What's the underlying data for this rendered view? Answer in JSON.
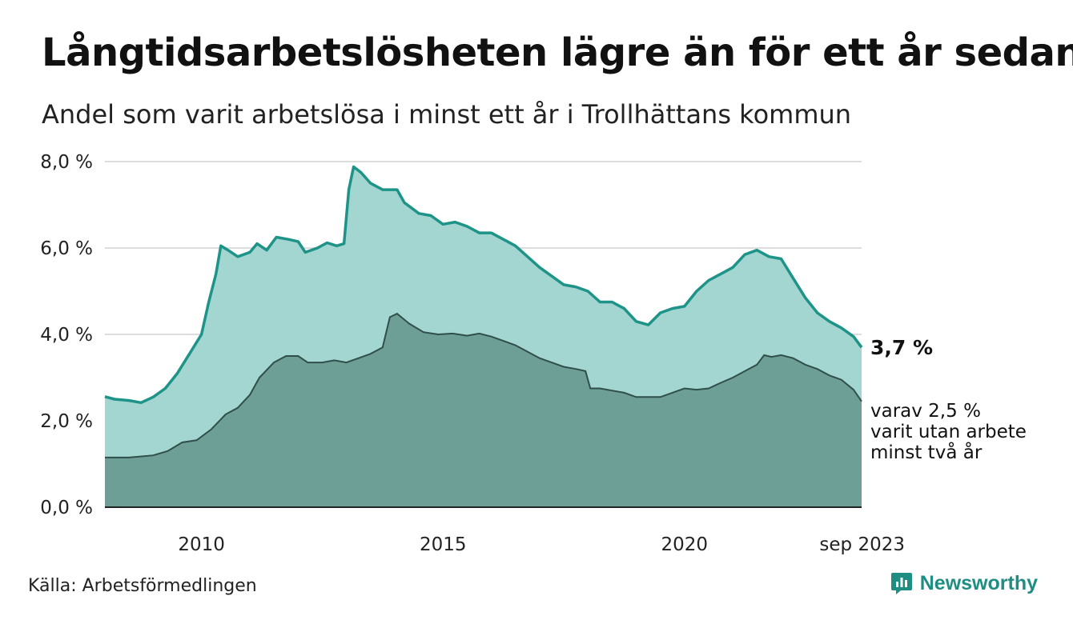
{
  "title": "Långtidsarbetslösheten lägre än för ett år sedan",
  "subtitle": "Andel som varit arbetslösa i minst ett år i Trollhättans kommun",
  "source": "Källa: Arbetsförmedlingen",
  "brand": "Newsworthy",
  "colors": {
    "primary_fill": "#a3d6d0",
    "primary_line": "#1e9388",
    "secondary_fill": "#6e9f97",
    "secondary_line": "#2f4f4a",
    "grid": "#dddddd",
    "brand": "#1e8d82"
  },
  "chart_data": {
    "type": "area",
    "unit": "%",
    "x_start": 2008.0,
    "x_end": 2023.667,
    "ylim": [
      0,
      8
    ],
    "y_ticks": [
      0,
      2,
      4,
      6,
      8
    ],
    "y_tick_labels": [
      "0,0 %",
      "2,0 %",
      "4,0 %",
      "6,0 %",
      "8,0 %"
    ],
    "x_ticks": [
      2010,
      2015,
      2020,
      2023.667
    ],
    "x_tick_labels": [
      "2010",
      "2015",
      "2020",
      "sep 2023"
    ],
    "series": [
      {
        "name": "Arbetslösa minst ett år",
        "points": [
          [
            2008.0,
            2.56
          ],
          [
            2008.2,
            2.5
          ],
          [
            2008.5,
            2.47
          ],
          [
            2008.75,
            2.42
          ],
          [
            2009.0,
            2.55
          ],
          [
            2009.25,
            2.75
          ],
          [
            2009.5,
            3.1
          ],
          [
            2009.75,
            3.55
          ],
          [
            2010.0,
            4.0
          ],
          [
            2010.15,
            4.75
          ],
          [
            2010.3,
            5.4
          ],
          [
            2010.4,
            6.05
          ],
          [
            2010.55,
            5.95
          ],
          [
            2010.75,
            5.8
          ],
          [
            2011.0,
            5.9
          ],
          [
            2011.15,
            6.1
          ],
          [
            2011.35,
            5.95
          ],
          [
            2011.55,
            6.25
          ],
          [
            2011.8,
            6.2
          ],
          [
            2012.0,
            6.15
          ],
          [
            2012.15,
            5.9
          ],
          [
            2012.4,
            6.0
          ],
          [
            2012.6,
            6.12
          ],
          [
            2012.8,
            6.05
          ],
          [
            2012.95,
            6.1
          ],
          [
            2013.05,
            7.35
          ],
          [
            2013.15,
            7.88
          ],
          [
            2013.3,
            7.75
          ],
          [
            2013.5,
            7.5
          ],
          [
            2013.75,
            7.35
          ],
          [
            2014.05,
            7.35
          ],
          [
            2014.2,
            7.05
          ],
          [
            2014.5,
            6.8
          ],
          [
            2014.75,
            6.75
          ],
          [
            2015.0,
            6.55
          ],
          [
            2015.25,
            6.6
          ],
          [
            2015.5,
            6.5
          ],
          [
            2015.75,
            6.35
          ],
          [
            2016.0,
            6.35
          ],
          [
            2016.25,
            6.2
          ],
          [
            2016.5,
            6.05
          ],
          [
            2016.75,
            5.8
          ],
          [
            2017.0,
            5.55
          ],
          [
            2017.25,
            5.35
          ],
          [
            2017.5,
            5.15
          ],
          [
            2017.75,
            5.1
          ],
          [
            2018.0,
            5.0
          ],
          [
            2018.25,
            4.75
          ],
          [
            2018.5,
            4.75
          ],
          [
            2018.75,
            4.6
          ],
          [
            2019.0,
            4.3
          ],
          [
            2019.25,
            4.22
          ],
          [
            2019.5,
            4.5
          ],
          [
            2019.75,
            4.6
          ],
          [
            2020.0,
            4.65
          ],
          [
            2020.25,
            5.0
          ],
          [
            2020.5,
            5.25
          ],
          [
            2020.75,
            5.4
          ],
          [
            2021.0,
            5.55
          ],
          [
            2021.25,
            5.85
          ],
          [
            2021.5,
            5.95
          ],
          [
            2021.75,
            5.8
          ],
          [
            2022.0,
            5.75
          ],
          [
            2022.25,
            5.3
          ],
          [
            2022.5,
            4.85
          ],
          [
            2022.75,
            4.5
          ],
          [
            2023.0,
            4.3
          ],
          [
            2023.25,
            4.15
          ],
          [
            2023.5,
            3.95
          ],
          [
            2023.667,
            3.7
          ]
        ]
      },
      {
        "name": "varav utan arbete minst två år",
        "points": [
          [
            2008.0,
            1.15
          ],
          [
            2008.5,
            1.15
          ],
          [
            2009.0,
            1.2
          ],
          [
            2009.3,
            1.3
          ],
          [
            2009.6,
            1.5
          ],
          [
            2009.9,
            1.55
          ],
          [
            2010.2,
            1.8
          ],
          [
            2010.5,
            2.15
          ],
          [
            2010.75,
            2.3
          ],
          [
            2011.0,
            2.6
          ],
          [
            2011.2,
            3.0
          ],
          [
            2011.5,
            3.35
          ],
          [
            2011.75,
            3.5
          ],
          [
            2012.0,
            3.5
          ],
          [
            2012.2,
            3.35
          ],
          [
            2012.5,
            3.35
          ],
          [
            2012.75,
            3.4
          ],
          [
            2013.0,
            3.35
          ],
          [
            2013.25,
            3.45
          ],
          [
            2013.5,
            3.55
          ],
          [
            2013.75,
            3.7
          ],
          [
            2013.9,
            4.4
          ],
          [
            2014.05,
            4.48
          ],
          [
            2014.3,
            4.25
          ],
          [
            2014.6,
            4.05
          ],
          [
            2014.9,
            4.0
          ],
          [
            2015.2,
            4.02
          ],
          [
            2015.5,
            3.97
          ],
          [
            2015.75,
            4.02
          ],
          [
            2016.0,
            3.95
          ],
          [
            2016.25,
            3.85
          ],
          [
            2016.5,
            3.75
          ],
          [
            2016.75,
            3.6
          ],
          [
            2017.0,
            3.45
          ],
          [
            2017.25,
            3.35
          ],
          [
            2017.5,
            3.25
          ],
          [
            2017.75,
            3.2
          ],
          [
            2017.95,
            3.15
          ],
          [
            2018.05,
            2.75
          ],
          [
            2018.25,
            2.75
          ],
          [
            2018.5,
            2.7
          ],
          [
            2018.75,
            2.65
          ],
          [
            2019.0,
            2.55
          ],
          [
            2019.25,
            2.55
          ],
          [
            2019.5,
            2.55
          ],
          [
            2019.75,
            2.65
          ],
          [
            2020.0,
            2.75
          ],
          [
            2020.25,
            2.72
          ],
          [
            2020.5,
            2.75
          ],
          [
            2020.75,
            2.88
          ],
          [
            2021.0,
            3.0
          ],
          [
            2021.25,
            3.15
          ],
          [
            2021.5,
            3.3
          ],
          [
            2021.65,
            3.52
          ],
          [
            2021.8,
            3.48
          ],
          [
            2022.0,
            3.52
          ],
          [
            2022.25,
            3.45
          ],
          [
            2022.5,
            3.3
          ],
          [
            2022.75,
            3.2
          ],
          [
            2023.0,
            3.05
          ],
          [
            2023.25,
            2.95
          ],
          [
            2023.5,
            2.72
          ],
          [
            2023.667,
            2.45
          ]
        ]
      }
    ],
    "annotations": {
      "last_value": "3,7 %",
      "secondary_lines": [
        "varav 2,5 %",
        "varit utan arbete",
        "minst två år"
      ]
    }
  }
}
